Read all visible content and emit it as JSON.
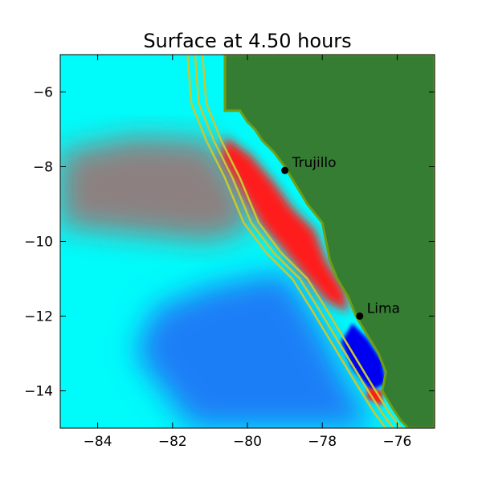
{
  "chart_data": {
    "type": "heatmap",
    "title": "Surface at 4.50 hours",
    "xlabel": "",
    "ylabel": "",
    "xlim": [
      -85,
      -75
    ],
    "ylim": [
      -15,
      -5
    ],
    "xticks": [
      -84,
      -82,
      -80,
      -78,
      -76
    ],
    "yticks": [
      -6,
      -8,
      -10,
      -12,
      -14
    ],
    "xtick_labels": [
      "−84",
      "−82",
      "−80",
      "−78",
      "−76"
    ],
    "ytick_labels": [
      "−6",
      "−8",
      "−10",
      "−12",
      "−14"
    ],
    "grid": false,
    "colors": {
      "land": "#357d33",
      "land_edge": "#6f9e12",
      "ocean_cyan": "#00fbfb",
      "ocean_light_blue": "#2fc6fb",
      "ocean_blue": "#1e7ef7",
      "positive_surface": "#ff1a1a",
      "negative_surface": "#0000f0",
      "contour": "#c8c832",
      "marker": "#000000"
    },
    "cities": [
      {
        "name": "Trujillo",
        "lon": -79.0,
        "lat": -8.1
      },
      {
        "name": "Lima",
        "lon": -77.0,
        "lat": -12.0
      }
    ],
    "coastline": [
      [
        -80.6,
        -5.0
      ],
      [
        -80.6,
        -6.5
      ],
      [
        -80.2,
        -6.5
      ],
      [
        -80.0,
        -6.8
      ],
      [
        -79.8,
        -7.0
      ],
      [
        -79.6,
        -7.3
      ],
      [
        -79.3,
        -7.6
      ],
      [
        -79.0,
        -8.0
      ],
      [
        -78.7,
        -8.5
      ],
      [
        -78.4,
        -9.0
      ],
      [
        -78.0,
        -9.5
      ],
      [
        -77.9,
        -10.0
      ],
      [
        -77.8,
        -10.5
      ],
      [
        -77.6,
        -11.0
      ],
      [
        -77.3,
        -11.5
      ],
      [
        -77.1,
        -12.0
      ],
      [
        -76.8,
        -12.5
      ],
      [
        -76.5,
        -13.0
      ],
      [
        -76.3,
        -13.5
      ],
      [
        -76.4,
        -14.0
      ],
      [
        -76.1,
        -14.5
      ],
      [
        -75.9,
        -14.8
      ],
      [
        -75.7,
        -15.0
      ]
    ],
    "contours": [
      [
        [
          -81.6,
          -5.0
        ],
        [
          -81.5,
          -6.3
        ],
        [
          -81.1,
          -7.3
        ],
        [
          -80.6,
          -8.3
        ],
        [
          -80.1,
          -9.5
        ],
        [
          -79.5,
          -10.3
        ],
        [
          -78.8,
          -11.0
        ],
        [
          -78.3,
          -11.8
        ],
        [
          -77.7,
          -12.8
        ],
        [
          -77.1,
          -13.8
        ],
        [
          -76.6,
          -14.6
        ],
        [
          -76.3,
          -15.0
        ]
      ],
      [
        [
          -81.4,
          -5.0
        ],
        [
          -81.3,
          -6.3
        ],
        [
          -80.9,
          -7.3
        ],
        [
          -80.4,
          -8.3
        ],
        [
          -79.9,
          -9.5
        ],
        [
          -79.3,
          -10.3
        ],
        [
          -78.6,
          -11.0
        ],
        [
          -78.1,
          -11.8
        ],
        [
          -77.5,
          -12.8
        ],
        [
          -76.9,
          -13.8
        ],
        [
          -76.4,
          -14.6
        ],
        [
          -76.1,
          -15.0
        ]
      ],
      [
        [
          -81.2,
          -5.0
        ],
        [
          -81.1,
          -6.3
        ],
        [
          -80.7,
          -7.3
        ],
        [
          -80.2,
          -8.3
        ],
        [
          -79.7,
          -9.5
        ],
        [
          -79.1,
          -10.3
        ],
        [
          -78.4,
          -11.0
        ],
        [
          -77.9,
          -11.8
        ],
        [
          -77.3,
          -12.8
        ],
        [
          -76.7,
          -13.8
        ],
        [
          -76.2,
          -14.6
        ],
        [
          -75.9,
          -15.0
        ]
      ]
    ],
    "red_band_region": [
      [
        -80.6,
        -7.2
      ],
      [
        -79.9,
        -7.7
      ],
      [
        -79.3,
        -8.4
      ],
      [
        -78.8,
        -9.1
      ],
      [
        -78.2,
        -9.7
      ],
      [
        -77.9,
        -10.5
      ],
      [
        -77.4,
        -11.3
      ],
      [
        -77.3,
        -11.9
      ],
      [
        -77.9,
        -11.6
      ],
      [
        -78.5,
        -10.9
      ],
      [
        -79.0,
        -10.3
      ],
      [
        -79.6,
        -9.6
      ],
      [
        -80.2,
        -8.6
      ],
      [
        -80.7,
        -7.8
      ]
    ],
    "blue_region": [
      [
        -77.2,
        -12.2
      ],
      [
        -76.8,
        -12.6
      ],
      [
        -76.4,
        -13.2
      ],
      [
        -76.3,
        -13.8
      ],
      [
        -76.7,
        -14.0
      ],
      [
        -77.2,
        -13.4
      ],
      [
        -77.5,
        -12.7
      ]
    ],
    "small_red_patch": [
      [
        -76.8,
        -13.9
      ],
      [
        -76.4,
        -14.0
      ],
      [
        -76.4,
        -14.4
      ],
      [
        -76.8,
        -14.2
      ]
    ],
    "diffuse_red_region": [
      [
        -85.0,
        -7.6
      ],
      [
        -83.0,
        -7.2
      ],
      [
        -81.0,
        -7.3
      ],
      [
        -80.2,
        -8.4
      ],
      [
        -79.8,
        -9.6
      ],
      [
        -81.0,
        -10.0
      ],
      [
        -83.0,
        -9.8
      ],
      [
        -85.0,
        -9.6
      ]
    ],
    "deep_blue_region": [
      [
        -81.0,
        -11.2
      ],
      [
        -79.0,
        -10.8
      ],
      [
        -78.2,
        -12.0
      ],
      [
        -77.4,
        -13.6
      ],
      [
        -76.6,
        -15.0
      ],
      [
        -81.5,
        -15.0
      ],
      [
        -83.0,
        -13.0
      ],
      [
        -82.5,
        -11.8
      ]
    ]
  }
}
